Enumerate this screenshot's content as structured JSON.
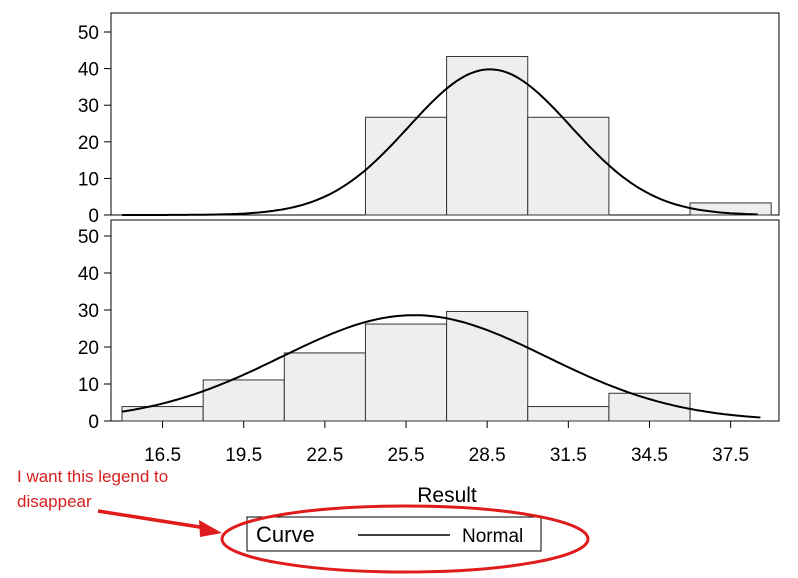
{
  "chart_data": {
    "type": "bar",
    "subtype": "paneled histogram with fitted normal curves",
    "xlabel": "Result",
    "x_ticks": [
      16.5,
      19.5,
      22.5,
      25.5,
      28.5,
      31.5,
      34.5,
      37.5
    ],
    "x_tick_labels": [
      "16.5",
      "19.5",
      "22.5",
      "25.5",
      "28.5",
      "31.5",
      "34.5",
      "37.5"
    ],
    "xlim": [
      14.6,
      38.9
    ],
    "ylim": [
      0,
      55
    ],
    "y_ticks": [
      0,
      10,
      20,
      30,
      40,
      50
    ],
    "y_tick_labels": [
      "0",
      "10",
      "20",
      "30",
      "40",
      "50"
    ],
    "bin_width": 3,
    "bar_color": "#eeeeee",
    "bar_edge_color": "#333333",
    "curve_color": "#000000",
    "panels": [
      {
        "bins": [
          {
            "x0": 24.0,
            "x1": 27.0,
            "value": 26.7
          },
          {
            "x0": 27.0,
            "x1": 30.0,
            "value": 43.3
          },
          {
            "x0": 30.0,
            "x1": 33.0,
            "value": 26.7
          },
          {
            "x0": 36.0,
            "x1": 39.0,
            "value": 3.3
          }
        ],
        "normal_curve": {
          "mean": 28.6,
          "sd": 3.0,
          "peak": 39.8,
          "x_from": 15.0,
          "x_to": 38.5
        }
      },
      {
        "bins": [
          {
            "x0": 15.0,
            "x1": 18.0,
            "value": 3.9
          },
          {
            "x0": 18.0,
            "x1": 21.0,
            "value": 11.1
          },
          {
            "x0": 21.0,
            "x1": 24.0,
            "value": 18.4
          },
          {
            "x0": 24.0,
            "x1": 27.0,
            "value": 26.2
          },
          {
            "x0": 27.0,
            "x1": 30.0,
            "value": 29.6
          },
          {
            "x0": 30.0,
            "x1": 33.0,
            "value": 3.9
          },
          {
            "x0": 33.0,
            "x1": 36.0,
            "value": 7.5
          }
        ],
        "normal_curve": {
          "mean": 25.8,
          "sd": 4.9,
          "peak": 28.6,
          "x_from": 15.0,
          "x_to": 38.6
        }
      }
    ],
    "legend": {
      "title": "Curve",
      "entries": [
        {
          "name": "Normal",
          "style": "solid-line"
        }
      ],
      "placement": "bottom-center"
    }
  },
  "annotation": {
    "text_lines": [
      "I want this legend to",
      "disappear"
    ],
    "color": "#d62020"
  }
}
